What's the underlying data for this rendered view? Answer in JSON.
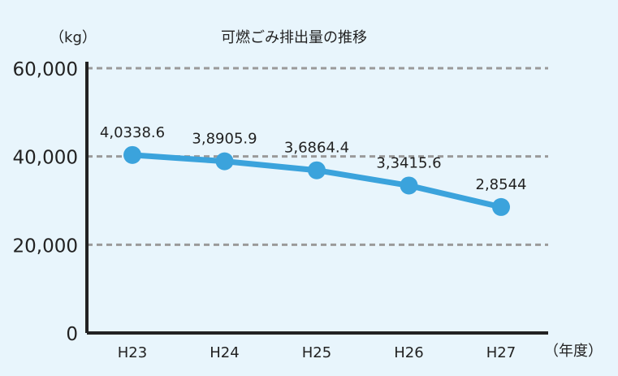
{
  "chart_data": {
    "type": "line",
    "title": "可燃ごみ排出量の推移",
    "ylabel": "（kg）",
    "xlabel": "（年度）",
    "categories": [
      "H23",
      "H24",
      "H25",
      "H26",
      "H27"
    ],
    "series": [
      {
        "values": [
          40338.6,
          38905.9,
          36864.4,
          33415.6,
          28544
        ],
        "labels": [
          "4,0338.6",
          "3,8905.9",
          "3,6864.4",
          "3,3415.6",
          "2,8544"
        ]
      }
    ],
    "ylim": [
      0,
      60000
    ],
    "yticks": [
      0,
      20000,
      40000,
      60000
    ],
    "ytick_labels": [
      "0",
      "20,000",
      "40,000",
      "60,000"
    ],
    "grid": true,
    "colors": {
      "line": "#3ba3dc",
      "grid": "#9a9a9a",
      "axis": "#222222",
      "background": "#e8f5fc"
    }
  }
}
